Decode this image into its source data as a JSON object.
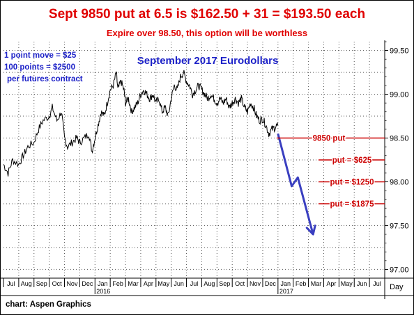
{
  "header": {
    "headline": "Sept 9850 put at 6.5 is $162.50 + 31 = $193.50 each",
    "subline": "Expire over 98.50, this option will be worthless"
  },
  "notes": {
    "line1": "1 point move = $25",
    "line2": "100 points = $2500",
    "line3": "per futures contract"
  },
  "source_label": "chart: Aspen Graphics",
  "colors": {
    "price": "#000000",
    "projection": "#3a3fc0",
    "annotation": "#cc0000",
    "notes": "#1d22c8",
    "headline": "#e00000"
  },
  "chart_data": {
    "type": "line",
    "title": "September 2017 Eurodollars",
    "ylim": [
      96.9,
      99.6
    ],
    "y_ticks": [
      "97.00",
      "97.50",
      "98.00",
      "98.50",
      "99.00",
      "99.50"
    ],
    "y_tick_values": [
      97.0,
      97.5,
      98.0,
      98.5,
      99.0,
      99.5
    ],
    "x_axis_unit": "Day",
    "months": [
      "Jul",
      "Aug",
      "Sep",
      "Oct",
      "Nov",
      "Dec",
      "Jan",
      "Feb",
      "Mar",
      "Apr",
      "May",
      "Jun",
      "Jul",
      "Aug",
      "Sep",
      "Oct",
      "Nov",
      "Dec",
      "Jan",
      "Feb",
      "Mar",
      "Apr",
      "May",
      "Jun",
      "Jul"
    ],
    "years": [
      {
        "label": "2016",
        "month_index": 6
      },
      {
        "label": "2017",
        "month_index": 18
      }
    ],
    "grid": true,
    "series": [
      {
        "values": [
          [
            0.0,
            98.2
          ],
          [
            0.3,
            98.1
          ],
          [
            0.6,
            98.25
          ],
          [
            1.0,
            98.2
          ],
          [
            1.3,
            98.3
          ],
          [
            1.6,
            98.4
          ],
          [
            2.0,
            98.45
          ],
          [
            2.3,
            98.6
          ],
          [
            2.6,
            98.7
          ],
          [
            3.0,
            98.75
          ],
          [
            3.2,
            98.85
          ],
          [
            3.5,
            98.7
          ],
          [
            3.8,
            98.8
          ],
          [
            4.0,
            98.5
          ],
          [
            4.2,
            98.4
          ],
          [
            4.5,
            98.45
          ],
          [
            4.8,
            98.5
          ],
          [
            5.0,
            98.45
          ],
          [
            5.3,
            98.5
          ],
          [
            5.6,
            98.55
          ],
          [
            5.8,
            98.35
          ],
          [
            6.0,
            98.5
          ],
          [
            6.2,
            98.65
          ],
          [
            6.4,
            98.8
          ],
          [
            6.6,
            98.75
          ],
          [
            6.8,
            98.9
          ],
          [
            7.0,
            99.05
          ],
          [
            7.2,
            99.1
          ],
          [
            7.4,
            99.25
          ],
          [
            7.5,
            99.05
          ],
          [
            7.7,
            99.15
          ],
          [
            7.9,
            99.05
          ],
          [
            8.0,
            98.9
          ],
          [
            8.2,
            98.95
          ],
          [
            8.4,
            98.8
          ],
          [
            8.6,
            98.85
          ],
          [
            8.8,
            98.9
          ],
          [
            9.0,
            99.0
          ],
          [
            9.2,
            99.05
          ],
          [
            9.4,
            99.0
          ],
          [
            9.6,
            98.95
          ],
          [
            9.8,
            99.0
          ],
          [
            10.0,
            98.9
          ],
          [
            10.2,
            98.95
          ],
          [
            10.4,
            98.8
          ],
          [
            10.6,
            98.85
          ],
          [
            10.8,
            98.75
          ],
          [
            11.0,
            98.95
          ],
          [
            11.2,
            99.1
          ],
          [
            11.4,
            99.05
          ],
          [
            11.6,
            99.2
          ],
          [
            11.8,
            99.25
          ],
          [
            12.0,
            99.15
          ],
          [
            12.2,
            99.1
          ],
          [
            12.4,
            99.0
          ],
          [
            12.6,
            99.05
          ],
          [
            12.8,
            99.1
          ],
          [
            13.0,
            99.05
          ],
          [
            13.2,
            99.0
          ],
          [
            13.4,
            98.95
          ],
          [
            13.6,
            99.0
          ],
          [
            13.8,
            98.95
          ],
          [
            14.0,
            98.9
          ],
          [
            14.2,
            98.95
          ],
          [
            14.4,
            98.9
          ],
          [
            14.6,
            98.95
          ],
          [
            14.8,
            98.85
          ],
          [
            15.0,
            98.9
          ],
          [
            15.2,
            98.95
          ],
          [
            15.4,
            98.9
          ],
          [
            15.6,
            98.95
          ],
          [
            15.8,
            98.85
          ],
          [
            16.0,
            98.8
          ],
          [
            16.2,
            98.9
          ],
          [
            16.4,
            98.85
          ],
          [
            16.6,
            98.75
          ],
          [
            16.8,
            98.7
          ],
          [
            17.0,
            98.72
          ],
          [
            17.2,
            98.65
          ],
          [
            17.4,
            98.55
          ],
          [
            17.6,
            98.6
          ],
          [
            17.8,
            98.62
          ],
          [
            18.0,
            98.65
          ]
        ]
      },
      {
        "values": [
          [
            18.0,
            98.55
          ],
          [
            18.9,
            97.95
          ],
          [
            19.3,
            98.05
          ],
          [
            20.3,
            97.4
          ]
        ]
      }
    ],
    "annotations": [
      {
        "label": "9850 put",
        "y": 98.5
      },
      {
        "label": "put = $625",
        "y": 98.25
      },
      {
        "label": "put = $1250",
        "y": 98.0
      },
      {
        "label": "put = $1875",
        "y": 97.75
      }
    ]
  }
}
